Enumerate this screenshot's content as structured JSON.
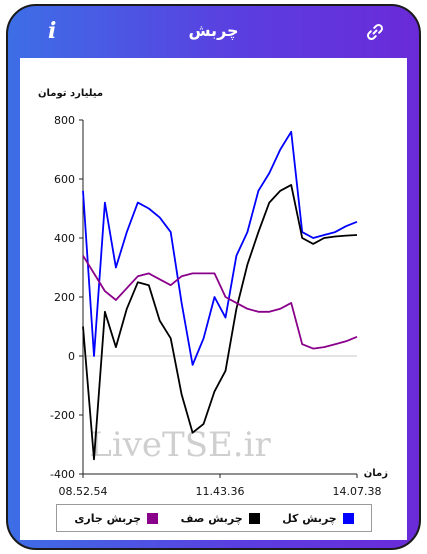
{
  "app": {
    "title": "چربش",
    "info_icon": "info-icon",
    "link_icon": "link-icon"
  },
  "watermark": "LiveTSE.ir",
  "chart_data": {
    "type": "line",
    "ylabel": "میلیارد تومان",
    "xlabel": "زمان",
    "ylim": [
      -400,
      800
    ],
    "yticks": [
      "800",
      "600",
      "400",
      "200",
      "0",
      "-200",
      "-400"
    ],
    "x_tick_labels": [
      "08.52.54",
      "11.43.36",
      "14.07.38"
    ],
    "x": [
      0,
      4,
      8,
      12,
      16,
      20,
      24,
      28,
      32,
      36,
      40,
      44,
      48,
      52,
      56,
      60,
      64,
      68,
      72,
      76,
      80,
      84,
      88,
      92,
      96,
      100
    ],
    "series": [
      {
        "name": "چربش کل",
        "color": "#0000ff",
        "values": [
          560,
          0,
          520,
          300,
          420,
          520,
          500,
          470,
          420,
          180,
          -30,
          60,
          200,
          130,
          340,
          420,
          560,
          620,
          700,
          760,
          420,
          400,
          410,
          420,
          440,
          455
        ]
      },
      {
        "name": "چربش صف",
        "color": "#000000",
        "values": [
          100,
          -350,
          150,
          30,
          160,
          250,
          240,
          120,
          60,
          -130,
          -260,
          -230,
          -120,
          -50,
          160,
          310,
          420,
          520,
          560,
          580,
          400,
          380,
          400,
          405,
          408,
          410
        ]
      },
      {
        "name": "چربش جاری",
        "color": "#8b008b",
        "values": [
          340,
          280,
          220,
          190,
          230,
          270,
          280,
          260,
          240,
          270,
          280,
          280,
          280,
          200,
          180,
          160,
          150,
          150,
          160,
          180,
          40,
          25,
          30,
          40,
          50,
          65
        ]
      }
    ],
    "legend_position": "bottom",
    "grid": false
  }
}
